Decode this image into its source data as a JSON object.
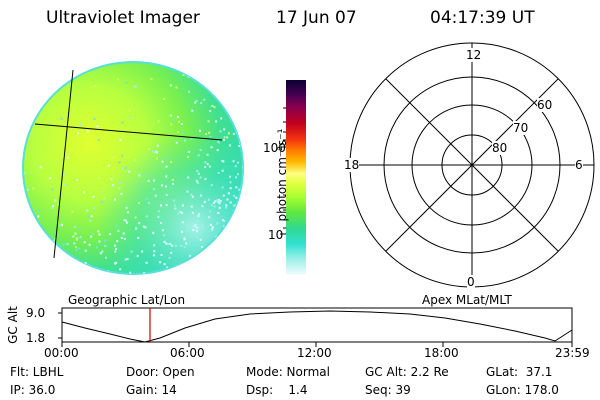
{
  "header": {
    "title": "Ultraviolet Imager",
    "date": "17 Jun 07",
    "time": "04:17:39 UT"
  },
  "colorbar": {
    "label": "photon cm⁻²s⁻¹",
    "ticks": [
      "100",
      "10"
    ],
    "colors": [
      "#0a0030",
      "#3a0050",
      "#7a0060",
      "#b00030",
      "#e01010",
      "#ff5000",
      "#ff9a00",
      "#ffd800",
      "#ffff60",
      "#e8ff40",
      "#b8ff30",
      "#7cf030",
      "#40e060",
      "#20d0a0",
      "#30e8d0",
      "#80f0e8",
      "#c8f8f4",
      "#eefcfc"
    ]
  },
  "polar": {
    "labels": {
      "top": "12",
      "right": "6",
      "left": "18",
      "bottom": "0",
      "ring60": "60",
      "ring70": "70",
      "ring80": "80"
    }
  },
  "orbit": {
    "y_axis_label": "GC Alt",
    "y_ticks": [
      "9.0",
      "1.8"
    ],
    "left_caption": "Geographic Lat/Lon",
    "right_caption": "Apex MLat/MLT",
    "x_ticks": [
      "00:00",
      "06:00",
      "12:00",
      "18:00",
      "23:59"
    ],
    "current_time_color": "#cc0000"
  },
  "info": {
    "filter": "Flt: LBHL",
    "door": "Door: Open",
    "mode": "Mode: Normal",
    "gc_alt": "GC Alt: 2.2 Re",
    "glat": "GLat:  37.1",
    "ip": "IP: 36.0",
    "gain": "Gain: 14",
    "dsp": "Dsp:    1.4",
    "seq": "Seq: 39",
    "glon": "GLon: 178.0"
  }
}
